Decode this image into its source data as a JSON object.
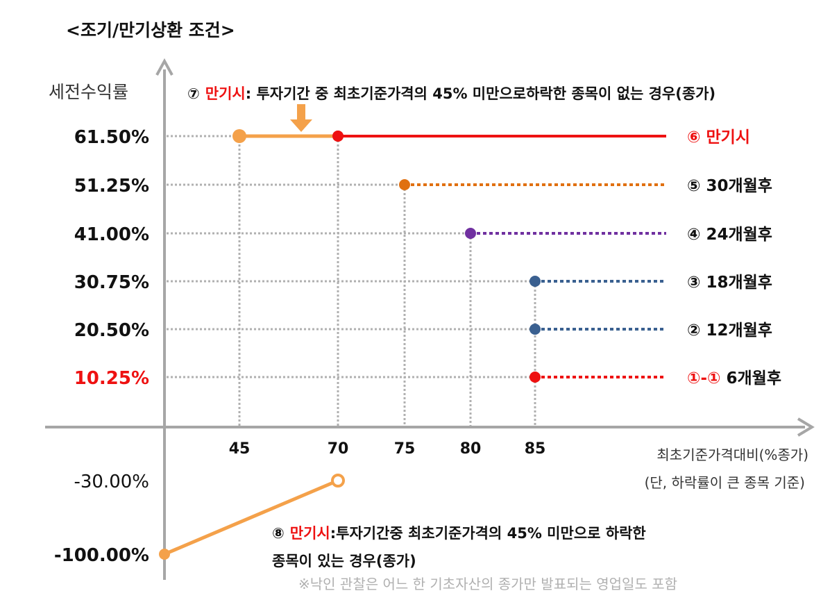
{
  "title": "<조기/만기상환 조건>",
  "y_axis_label": "세전수익률",
  "x_axis_label": "최초기준가격대비(%종가)",
  "x_axis_note": "(단, 하락률이 큰 종목 기준)",
  "colors": {
    "red": "#ee1111",
    "orange": "#f4a14a",
    "dark_orange": "#e07010",
    "purple": "#7030a0",
    "blue": "#3a6090",
    "grid": "#b0b0b0",
    "axis": "#a6a6a6"
  },
  "note7": {
    "num": "⑦",
    "label": "만기시",
    "text": ": 투자기간 중 최초기준가격의 45% 미만으로하락한 종목이 없는 경우(종가)"
  },
  "note8": {
    "num": "⑧",
    "label": "만기시",
    "text": ":투자기간중 최초기준가격의 45% 미만으로 하락한",
    "text2": "종목이 있는 경우(종가)"
  },
  "footnote": "※낙인 관찰은 어느 한 기초자산의 종가만 발표되는 영업일도 포함",
  "chart_data": {
    "type": "line",
    "xlabel": "최초기준가격대비(%종가)",
    "ylabel": "세전수익률",
    "x_ticks": [
      "45",
      "70",
      "75",
      "80",
      "85"
    ],
    "y_ticks": [
      "61.50%",
      "51.25%",
      "41.00%",
      "30.75%",
      "20.50%",
      "10.25%",
      "-30.00%",
      "-100.00%"
    ],
    "series": [
      {
        "name": "만기시",
        "num": "⑥",
        "x_from": 70,
        "y": 61.5,
        "color": "#ee1111",
        "style": "solid",
        "label_color": "#ee1111"
      },
      {
        "name": "30개월후",
        "num": "⑤",
        "x_from": 75,
        "y": 51.25,
        "color": "#e07010",
        "style": "dotted",
        "label_color": "#111111"
      },
      {
        "name": "24개월후",
        "num": "④",
        "x_from": 80,
        "y": 41.0,
        "color": "#7030a0",
        "style": "dotted",
        "label_color": "#111111"
      },
      {
        "name": "18개월후",
        "num": "③",
        "x_from": 85,
        "y": 30.75,
        "color": "#3a6090",
        "style": "dotted",
        "label_color": "#111111"
      },
      {
        "name": "12개월후",
        "num": "②",
        "x_from": 85,
        "y": 20.5,
        "color": "#3a6090",
        "style": "dotted",
        "label_color": "#111111"
      },
      {
        "name": "6개월후",
        "num": "①-①",
        "x_from": 85,
        "y": 10.25,
        "color": "#ee1111",
        "style": "dotted",
        "label_color": "#111111"
      }
    ],
    "maturity_no_knockin": {
      "x": [
        45,
        70
      ],
      "y": [
        61.5,
        61.5
      ]
    },
    "maturity_knockin": {
      "x": [
        0,
        70
      ],
      "y": [
        -100,
        -30
      ]
    }
  }
}
